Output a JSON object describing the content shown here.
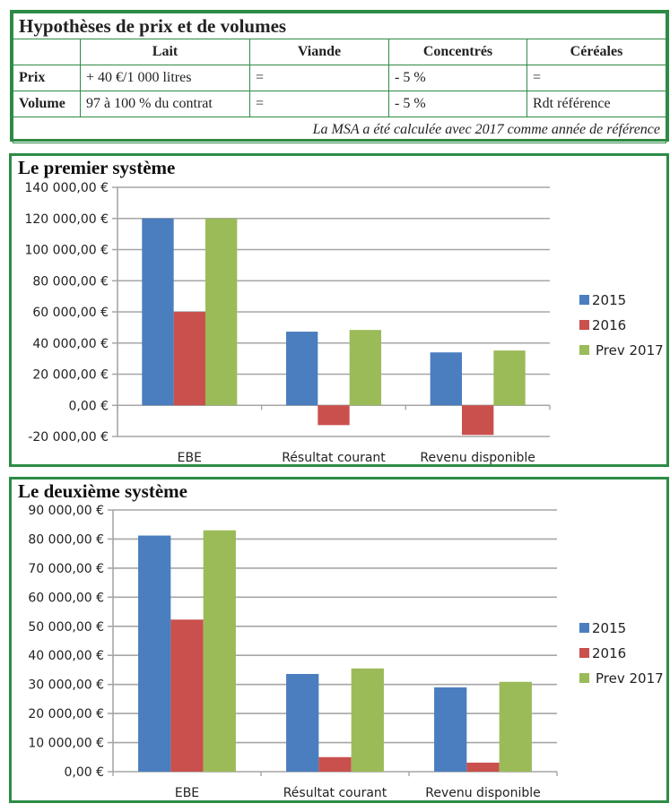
{
  "table": {
    "title": "Hypothèses de prix et de volumes",
    "headers": [
      "",
      "Lait",
      "Viande",
      "Concentrés",
      "Céréales"
    ],
    "rows": [
      {
        "label": "Prix",
        "cells": [
          "+ 40 €/1 000 litres",
          "=",
          "- 5 %",
          "="
        ]
      },
      {
        "label": "Volume",
        "cells": [
          "97 à 100 % du contrat",
          "=",
          "- 5 %",
          "Rdt référence"
        ]
      }
    ],
    "note": "La MSA a été calculée avec 2017 comme année de référence"
  },
  "colors": {
    "2015": "#4a7ebf",
    "2016": "#c9504d",
    "Prev 2017": "#9bbb59",
    "border": "#2e8b45",
    "grid": "#a6a6a6"
  },
  "chart_data": [
    {
      "type": "bar",
      "title": "Le premier système",
      "categories": [
        "EBE",
        "Résultat courant",
        "Revenu disponible"
      ],
      "series": [
        {
          "name": "2015",
          "values": [
            120000,
            47300,
            34000
          ]
        },
        {
          "name": "2016",
          "values": [
            60000,
            -12700,
            -19000
          ]
        },
        {
          "name": "Prev 2017",
          "values": [
            120000,
            48400,
            35200
          ]
        }
      ],
      "xlabel": "",
      "ylabel": "",
      "ylim": [
        -20000,
        140000
      ],
      "yticks": [
        -20000,
        0,
        20000,
        40000,
        60000,
        80000,
        100000,
        120000,
        140000
      ],
      "ytick_labels": [
        "-20 000,00 €",
        "0,00 €",
        "20 000,00 €",
        "40 000,00 €",
        "60 000,00 €",
        "80 000,00 €",
        "100 000,00 €",
        "120 000,00 €",
        "140 000,00 €"
      ],
      "grid": true,
      "legend": "right"
    },
    {
      "type": "bar",
      "title": "Le deuxième système",
      "categories": [
        "EBE",
        "Résultat courant",
        "Revenu disponible"
      ],
      "series": [
        {
          "name": "2015",
          "values": [
            81200,
            33600,
            29000
          ]
        },
        {
          "name": "2016",
          "values": [
            52300,
            5000,
            3100
          ]
        },
        {
          "name": "Prev 2017",
          "values": [
            83000,
            35500,
            30900
          ]
        }
      ],
      "xlabel": "",
      "ylabel": "",
      "ylim": [
        0,
        90000
      ],
      "yticks": [
        0,
        10000,
        20000,
        30000,
        40000,
        50000,
        60000,
        70000,
        80000,
        90000
      ],
      "ytick_labels": [
        "0,00 €",
        "10 000,00 €",
        "20 000,00 €",
        "30 000,00 €",
        "40 000,00 €",
        "50 000,00 €",
        "60 000,00 €",
        "70 000,00 €",
        "80 000,00 €",
        "90 000,00 €"
      ],
      "grid": true,
      "legend": "right"
    }
  ]
}
